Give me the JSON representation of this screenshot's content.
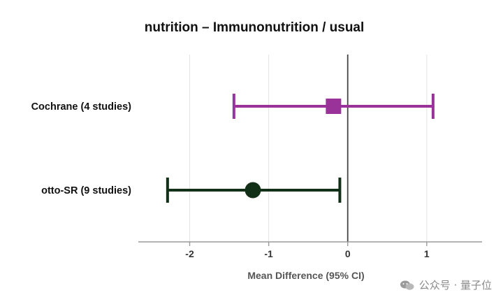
{
  "chart_data": {
    "type": "forest",
    "title": "nutrition – Immunonutrition / usual",
    "xlabel": "Mean Difference (95% CI)",
    "xlim": [
      -2.65,
      1.7
    ],
    "xticks": [
      -2,
      -1,
      0,
      1
    ],
    "xtick_labels": [
      "-2",
      "-1",
      "0",
      "1"
    ],
    "reference_line": 0,
    "grid": "vertical",
    "rows": [
      {
        "label": "Cochrane (4 studies)",
        "estimate": -0.18,
        "ci_low": -1.44,
        "ci_high": 1.08,
        "marker": "square",
        "color": "#993399"
      },
      {
        "label": "otto-SR (9 studies)",
        "estimate": -1.2,
        "ci_low": -2.28,
        "ci_high": -0.1,
        "marker": "circle",
        "color": "#123018"
      }
    ]
  },
  "watermark": {
    "text": "公众号 · 量子位",
    "icon": "wechat-icon"
  }
}
